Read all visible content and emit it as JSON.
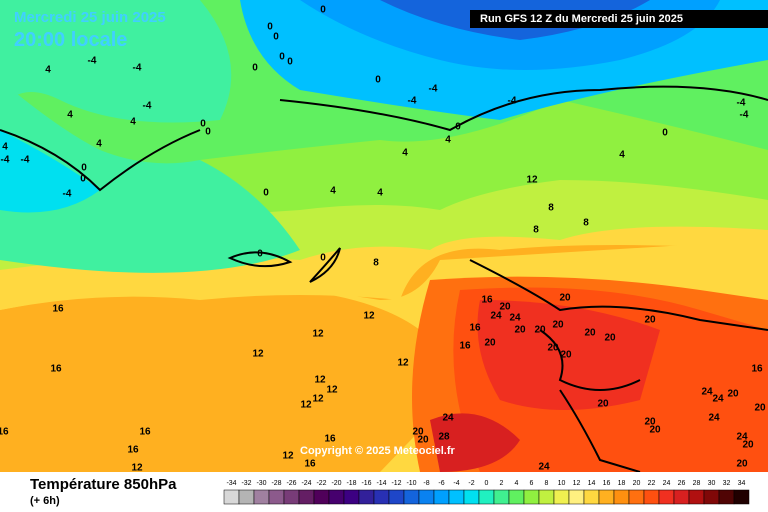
{
  "header": {
    "date": "Mercredi 25 juin 2025",
    "time": "20:00 locale",
    "run": "Run GFS 12 Z du Mercredi 25 juin 2025"
  },
  "copyright": "Copyright © 2025 Meteociel.fr",
  "footer": {
    "title": "Température 850hPa",
    "step": "(+ 6h)"
  },
  "colorbar": {
    "ticks": [
      -34,
      -32,
      -30,
      -28,
      -26,
      -24,
      -22,
      -20,
      -18,
      -16,
      -14,
      -12,
      -10,
      -8,
      -6,
      -4,
      -2,
      0,
      2,
      4,
      6,
      8,
      10,
      12,
      14,
      16,
      18,
      20,
      22,
      24,
      26,
      28,
      30,
      32,
      34
    ],
    "colors": [
      "#d8d8d8",
      "#b4b4b4",
      "#a080a0",
      "#8c5a8c",
      "#783c78",
      "#641e64",
      "#50005a",
      "#46006e",
      "#3c0082",
      "#32209a",
      "#2830b4",
      "#1e46c8",
      "#1464dc",
      "#0a82f0",
      "#00a0ff",
      "#00c0ff",
      "#00e0f0",
      "#20f0c0",
      "#40f090",
      "#60f060",
      "#90f040",
      "#c0f040",
      "#f0f050",
      "#fff080",
      "#ffd840",
      "#ffb020",
      "#ff9010",
      "#ff7010",
      "#ff5010",
      "#f03020",
      "#d82020",
      "#b01010",
      "#800808",
      "#500404",
      "#200000"
    ]
  },
  "contour_labels": [
    0,
    0,
    0,
    0,
    0,
    0,
    0,
    -4,
    -4,
    -4,
    0,
    -4,
    -4,
    4,
    0,
    -4,
    -4,
    4,
    -4,
    4,
    4,
    0,
    0,
    4,
    4,
    -4,
    -4,
    0,
    0,
    -4,
    0,
    4,
    4,
    4,
    4,
    0,
    0,
    8,
    12,
    8,
    8,
    8,
    16,
    20,
    24,
    24,
    16,
    20,
    20,
    20,
    20,
    20,
    20,
    20,
    20,
    20,
    16,
    20,
    16,
    12,
    12,
    12,
    16,
    12,
    12,
    12,
    12,
    12,
    16,
    16,
    12,
    12,
    16,
    16,
    16,
    24,
    20,
    20,
    28,
    20,
    20,
    20,
    24,
    24,
    20,
    20,
    24,
    24,
    20,
    20,
    24,
    16
  ]
}
